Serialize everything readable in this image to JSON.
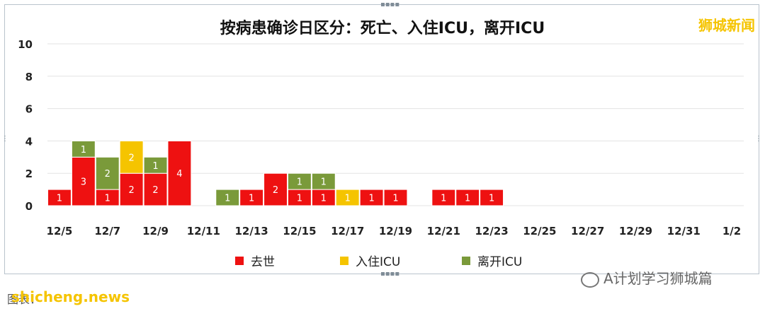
{
  "title": "按病患确诊日区分：死亡、入住ICU，离开ICU",
  "brand": "狮城新闻",
  "watermark": "A计划学习狮城篇",
  "source_label": "图表：",
  "site": "shicheng.news",
  "colors": {
    "died": "#ee1111",
    "icu_in": "#f5c400",
    "icu_out": "#7a9a3a",
    "grid": "#e3e3e3"
  },
  "chart_data": {
    "type": "bar",
    "stacked": true,
    "title": "按病患确诊日区分：死亡、入住ICU，离开ICU",
    "categories": [
      "12/5",
      "12/6",
      "12/7",
      "12/8",
      "12/9",
      "12/10",
      "12/11",
      "12/12",
      "12/13",
      "12/14",
      "12/15",
      "12/16",
      "12/17",
      "12/18",
      "12/19",
      "12/20",
      "12/21",
      "12/22",
      "12/23",
      "12/24",
      "12/25",
      "12/26",
      "12/27",
      "12/28",
      "12/29",
      "12/30",
      "12/31",
      "1/1",
      "1/2"
    ],
    "x_tick_labels": [
      "12/5",
      "12/7",
      "12/9",
      "12/11",
      "12/13",
      "12/15",
      "12/17",
      "12/19",
      "12/21",
      "12/23",
      "12/25",
      "12/27",
      "12/29",
      "12/31",
      "1/2"
    ],
    "ylim": [
      0,
      10
    ],
    "y_ticks": [
      0,
      2,
      4,
      6,
      8,
      10
    ],
    "grid": true,
    "legend_position": "bottom",
    "series": [
      {
        "name": "去世",
        "values": [
          1,
          3,
          1,
          2,
          2,
          4,
          0,
          0,
          1,
          2,
          1,
          1,
          0,
          1,
          1,
          0,
          1,
          1,
          1,
          0,
          0,
          0,
          0,
          0,
          0,
          0,
          0,
          0,
          0
        ]
      },
      {
        "name": "入住ICU",
        "values": [
          0,
          0,
          0,
          2,
          0,
          0,
          0,
          0,
          0,
          0,
          0,
          0,
          1,
          0,
          0,
          0,
          0,
          0,
          0,
          0,
          0,
          0,
          0,
          0,
          0,
          0,
          0,
          0,
          0
        ]
      },
      {
        "name": "离开ICU",
        "values": [
          0,
          1,
          2,
          0,
          1,
          0,
          0,
          1,
          0,
          0,
          1,
          1,
          0,
          0,
          0,
          0,
          0,
          0,
          0,
          0,
          0,
          0,
          0,
          0,
          0,
          0,
          0,
          0,
          0
        ]
      }
    ]
  }
}
